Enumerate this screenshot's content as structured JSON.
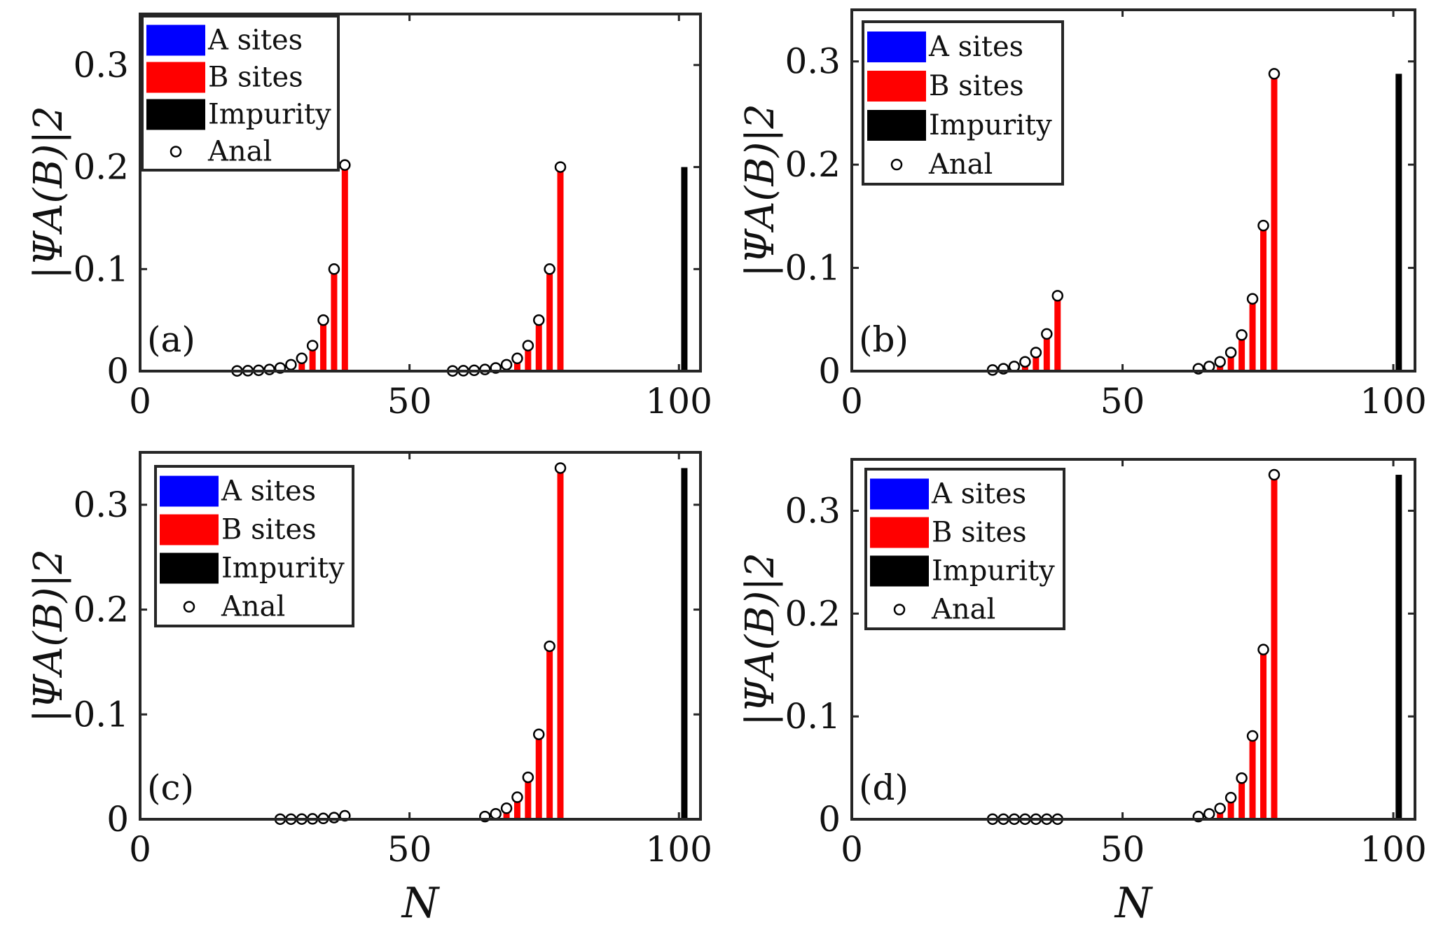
{
  "figure": {
    "xlabel": "N",
    "ylabel": "|ΨA(B)|2"
  },
  "colors": {
    "a_sites": "#0000ff",
    "b_sites": "#ff0000",
    "impurity": "#000000",
    "axes": "#262626"
  },
  "chart_data": [
    {
      "type": "bar",
      "panel_label": "(a)",
      "xlim": [
        0,
        104
      ],
      "ylim": [
        0,
        0.35
      ],
      "x_ticks": [
        0,
        50,
        100
      ],
      "x_tick_labels": [
        "0",
        "50",
        "100"
      ],
      "y_ticks": [
        0,
        0.1,
        0.2,
        0.3
      ],
      "y_tick_labels": [
        "0",
        "0.1",
        "0.2",
        "0.3"
      ],
      "legend": [
        "A sites",
        "B sites",
        "Impurity",
        "Anal"
      ],
      "series": [
        {
          "name": "A sites",
          "x": [],
          "values": []
        },
        {
          "name": "B sites",
          "x": [
            18,
            20,
            22,
            24,
            26,
            28,
            30,
            32,
            34,
            36,
            38,
            58,
            60,
            62,
            64,
            66,
            68,
            70,
            72,
            74,
            76,
            78
          ],
          "values": [
            0.0002,
            0.0004,
            0.0008,
            0.0016,
            0.0031,
            0.0063,
            0.0125,
            0.025,
            0.05,
            0.1,
            0.202,
            0.0002,
            0.0004,
            0.0008,
            0.0016,
            0.0031,
            0.0063,
            0.0125,
            0.025,
            0.05,
            0.1,
            0.2
          ]
        },
        {
          "name": "Impurity",
          "x": [
            101
          ],
          "values": [
            0.2
          ]
        },
        {
          "name": "Anal",
          "x": [
            18,
            20,
            22,
            24,
            26,
            28,
            30,
            32,
            34,
            36,
            38,
            58,
            60,
            62,
            64,
            66,
            68,
            70,
            72,
            74,
            76,
            78
          ],
          "values": [
            0.0002,
            0.0004,
            0.0008,
            0.0016,
            0.0031,
            0.0063,
            0.0125,
            0.025,
            0.05,
            0.1,
            0.202,
            0.0002,
            0.0004,
            0.0008,
            0.0016,
            0.0031,
            0.0063,
            0.0125,
            0.025,
            0.05,
            0.1,
            0.2
          ]
        }
      ]
    },
    {
      "type": "bar",
      "panel_label": "(b)",
      "xlim": [
        0,
        104
      ],
      "ylim": [
        0,
        0.35
      ],
      "x_ticks": [
        0,
        50,
        100
      ],
      "x_tick_labels": [
        "0",
        "50",
        "100"
      ],
      "y_ticks": [
        0,
        0.1,
        0.2,
        0.3
      ],
      "y_tick_labels": [
        "0",
        "0.1",
        "0.2",
        "0.3"
      ],
      "legend": [
        "A sites",
        "B sites",
        "Impurity",
        "Anal"
      ],
      "series": [
        {
          "name": "A sites",
          "x": [],
          "values": []
        },
        {
          "name": "B sites",
          "x": [
            26,
            28,
            30,
            32,
            34,
            36,
            38,
            64,
            66,
            68,
            70,
            72,
            74,
            76,
            78
          ],
          "values": [
            0.0011,
            0.0023,
            0.0045,
            0.009,
            0.018,
            0.036,
            0.073,
            0.0023,
            0.0045,
            0.009,
            0.018,
            0.035,
            0.07,
            0.141,
            0.288
          ]
        },
        {
          "name": "Impurity",
          "x": [
            101
          ],
          "values": [
            0.288
          ]
        },
        {
          "name": "Anal",
          "x": [
            26,
            28,
            30,
            32,
            34,
            36,
            38,
            64,
            66,
            68,
            70,
            72,
            74,
            76,
            78
          ],
          "values": [
            0.0011,
            0.0023,
            0.0045,
            0.009,
            0.018,
            0.036,
            0.073,
            0.0023,
            0.0045,
            0.009,
            0.018,
            0.035,
            0.07,
            0.141,
            0.288
          ]
        }
      ]
    },
    {
      "type": "bar",
      "panel_label": "(c)",
      "xlim": [
        0,
        104
      ],
      "ylim": [
        0,
        0.35
      ],
      "x_ticks": [
        0,
        50,
        100
      ],
      "x_tick_labels": [
        "0",
        "50",
        "100"
      ],
      "y_ticks": [
        0,
        0.1,
        0.2,
        0.3
      ],
      "y_tick_labels": [
        "0",
        "0.1",
        "0.2",
        "0.3"
      ],
      "legend": [
        "A sites",
        "B sites",
        "Impurity",
        "Anal"
      ],
      "series": [
        {
          "name": "A sites",
          "x": [],
          "values": []
        },
        {
          "name": "B sites",
          "x": [
            26,
            28,
            30,
            32,
            34,
            36,
            38,
            64,
            66,
            68,
            70,
            72,
            74,
            76,
            78
          ],
          "values": [
            0.0001,
            0.0001,
            0.0002,
            0.0004,
            0.0008,
            0.0016,
            0.0033,
            0.0026,
            0.0052,
            0.0105,
            0.021,
            0.04,
            0.081,
            0.165,
            0.335
          ]
        },
        {
          "name": "Impurity",
          "x": [
            101
          ],
          "values": [
            0.335
          ]
        },
        {
          "name": "Anal",
          "x": [
            26,
            28,
            30,
            32,
            34,
            36,
            38,
            64,
            66,
            68,
            70,
            72,
            74,
            76,
            78
          ],
          "values": [
            0.0001,
            0.0001,
            0.0002,
            0.0004,
            0.0008,
            0.0016,
            0.0033,
            0.0026,
            0.0052,
            0.0105,
            0.021,
            0.04,
            0.081,
            0.165,
            0.335
          ]
        }
      ]
    },
    {
      "type": "bar",
      "panel_label": "(d)",
      "xlim": [
        0,
        104
      ],
      "ylim": [
        0,
        0.35
      ],
      "x_ticks": [
        0,
        50,
        100
      ],
      "x_tick_labels": [
        "0",
        "50",
        "100"
      ],
      "y_ticks": [
        0,
        0.1,
        0.2,
        0.3
      ],
      "y_tick_labels": [
        "0",
        "0.1",
        "0.2",
        "0.3"
      ],
      "legend": [
        "A sites",
        "B sites",
        "Impurity",
        "Anal"
      ],
      "series": [
        {
          "name": "A sites",
          "x": [],
          "values": []
        },
        {
          "name": "B sites",
          "x": [
            26,
            28,
            30,
            32,
            34,
            36,
            38,
            64,
            66,
            68,
            70,
            72,
            74,
            76,
            78
          ],
          "values": [
            0.0001,
            0.0001,
            0.0001,
            0.0001,
            0.0001,
            0.0001,
            0.0001,
            0.0026,
            0.0052,
            0.0105,
            0.021,
            0.04,
            0.081,
            0.165,
            0.335
          ]
        },
        {
          "name": "Impurity",
          "x": [
            101
          ],
          "values": [
            0.335
          ]
        },
        {
          "name": "Anal",
          "x": [
            26,
            28,
            30,
            32,
            34,
            36,
            38,
            64,
            66,
            68,
            70,
            72,
            74,
            76,
            78
          ],
          "values": [
            0.0001,
            0.0001,
            0.0001,
            0.0001,
            0.0001,
            0.0001,
            0.0001,
            0.0026,
            0.0052,
            0.0105,
            0.021,
            0.04,
            0.081,
            0.165,
            0.335
          ]
        }
      ]
    }
  ]
}
